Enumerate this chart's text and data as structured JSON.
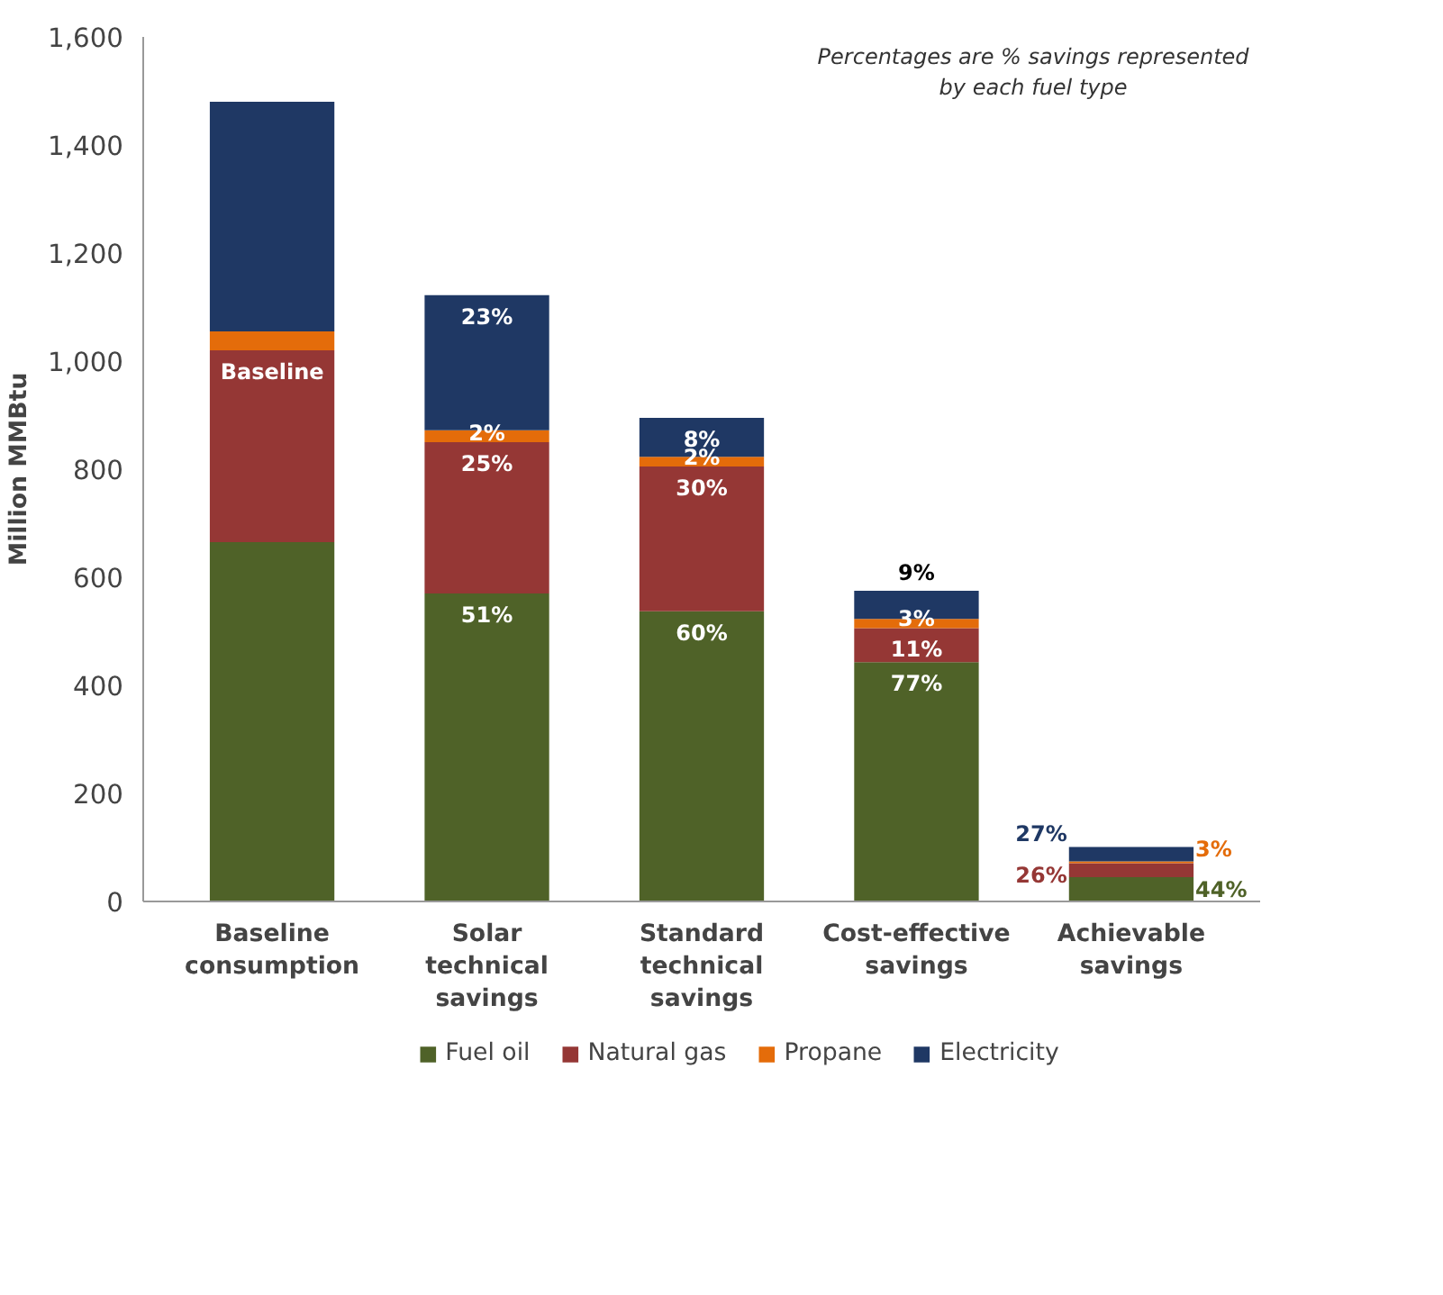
{
  "chart_data": {
    "type": "bar",
    "stacked": true,
    "ylabel": "Million MMBtu",
    "categories": [
      "Baseline consumption",
      "Solar technical savings",
      "Standard technical savings",
      "Cost-effective savings",
      "Achievable savings"
    ],
    "series": [
      {
        "name": "Fuel oil",
        "color": "#4f6228",
        "values": [
          665,
          570,
          537,
          443,
          45
        ]
      },
      {
        "name": "Natural gas",
        "color": "#953735",
        "values": [
          355,
          280,
          268,
          63,
          26
        ]
      },
      {
        "name": "Propane",
        "color": "#e46c0a",
        "values": [
          35,
          22,
          18,
          17,
          3
        ]
      },
      {
        "name": "Electricity",
        "color": "#1f3864",
        "values": [
          425,
          250,
          72,
          52,
          27
        ]
      }
    ],
    "ylim": [
      0,
      1600
    ],
    "yticks": [
      0,
      200,
      400,
      600,
      800,
      {
        "value": 1000,
        "label": "1,000"
      },
      {
        "value": 1200,
        "label": "1,200"
      },
      {
        "value": 1400,
        "label": "1,400"
      },
      {
        "value": 1600,
        "label": "1,600"
      }
    ],
    "grid": false,
    "legend": "bottom",
    "annotations": [
      "Percentages are % savings represented by each fuel type",
      {
        "text": "Baseline",
        "x": "Baseline consumption",
        "y": 1020
      },
      {
        "text": "51%",
        "x": "Solar technical savings",
        "y": 570
      },
      {
        "text": "25%",
        "x": "Solar technical savings",
        "y": 850
      },
      {
        "text": "2%",
        "x": "Solar technical savings",
        "y": 872
      },
      {
        "text": "23%",
        "x": "Solar technical savings",
        "y": 1122
      },
      {
        "text": "60%",
        "x": "Standard technical savings",
        "y": 537
      },
      {
        "text": "30%",
        "x": "Standard technical savings",
        "y": 805
      },
      {
        "text": "2%",
        "x": "Standard technical savings",
        "y": 823
      },
      {
        "text": "8%",
        "x": "Standard technical savings",
        "y": 895
      },
      {
        "text": "77%",
        "x": "Cost-effective savings",
        "y": 443
      },
      {
        "text": "11%",
        "x": "Cost-effective savings",
        "y": 506
      },
      {
        "text": "3%",
        "x": "Cost-effective savings",
        "y": 523
      },
      {
        "text": "9%",
        "x": "Cost-effective savings",
        "y": 575
      },
      {
        "text": "44%",
        "x": "Achievable savings",
        "y": 45
      },
      {
        "text": "26%",
        "x": "Achievable savings",
        "y": 71
      },
      {
        "text": "3%",
        "x": "Achievable savings",
        "y": 74
      },
      {
        "text": "27%",
        "x": "Achievable savings",
        "y": 101
      }
    ]
  }
}
